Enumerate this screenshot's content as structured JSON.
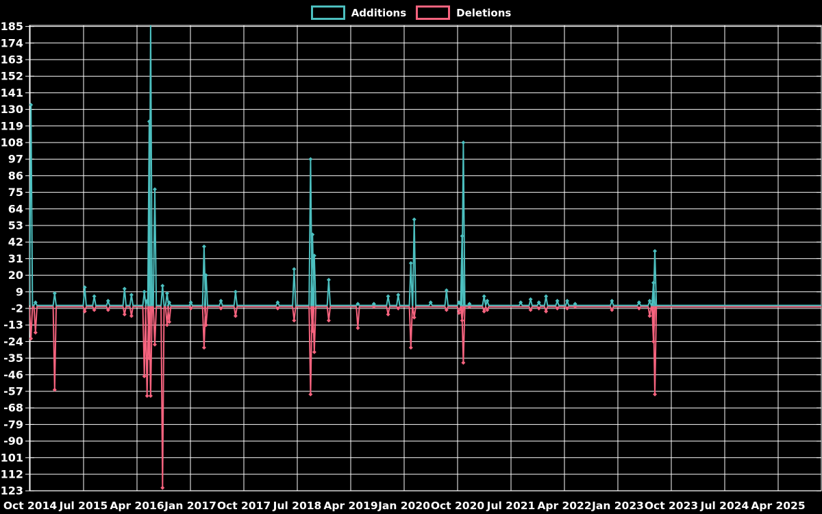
{
  "chart_data": {
    "type": "line",
    "title": "",
    "background_color": "#000000",
    "grid_color": "#ffffff",
    "text_color": "#ffffff",
    "legend_position": "top-center",
    "legend": [
      {
        "name": "Additions",
        "color": "#4CBFBF"
      },
      {
        "name": "Deletions",
        "color": "#F5637E"
      }
    ],
    "x_axis": {
      "type": "time",
      "start": "2014-10-01",
      "end": "2025-11-01",
      "tick_labels": [
        "Oct 2014",
        "Jul 2015",
        "Apr 2016",
        "Jan 2017",
        "Oct 2017",
        "Jul 2018",
        "Apr 2019",
        "Jan 2020",
        "Oct 2020",
        "Jul 2021",
        "Apr 2022",
        "Jan 2023",
        "Oct 2023",
        "Jul 2024",
        "Apr 2025"
      ],
      "tick_interval_months": 9
    },
    "y_axis": {
      "min": -123,
      "max": 185,
      "tick_step": 11,
      "ticks": [
        185,
        174,
        163,
        152,
        141,
        130,
        119,
        108,
        97,
        86,
        75,
        64,
        53,
        42,
        31,
        20,
        9,
        -2,
        -13,
        -24,
        -35,
        -46,
        -57,
        -68,
        -79,
        -90,
        -101,
        -112,
        -123
      ]
    },
    "grid": true,
    "events": [
      {
        "date": "2014-10-05",
        "additions": 133,
        "deletions": -22
      },
      {
        "date": "2014-10-28",
        "additions": 2,
        "deletions": -18
      },
      {
        "date": "2015-02-05",
        "additions": 8,
        "deletions": -56
      },
      {
        "date": "2015-07-07",
        "additions": 12,
        "deletions": -4
      },
      {
        "date": "2015-08-25",
        "additions": 6,
        "deletions": -3
      },
      {
        "date": "2015-11-05",
        "additions": 3,
        "deletions": -3
      },
      {
        "date": "2016-01-28",
        "additions": 11,
        "deletions": -6
      },
      {
        "date": "2016-03-03",
        "additions": 7,
        "deletions": -7
      },
      {
        "date": "2016-05-08",
        "additions": 9,
        "deletions": -47
      },
      {
        "date": "2016-05-22",
        "additions": 3,
        "deletions": -60
      },
      {
        "date": "2016-06-03",
        "additions": 122,
        "deletions": -35
      },
      {
        "date": "2016-06-10",
        "additions": 188,
        "deletions": -60
      },
      {
        "date": "2016-07-01",
        "additions": 77,
        "deletions": -26
      },
      {
        "date": "2016-08-10",
        "additions": 13,
        "deletions": -121
      },
      {
        "date": "2016-09-03",
        "additions": 8,
        "deletions": -13
      },
      {
        "date": "2016-09-14",
        "additions": 2,
        "deletions": -11
      },
      {
        "date": "2017-01-03",
        "additions": 2,
        "deletions": -2
      },
      {
        "date": "2017-03-10",
        "additions": 39,
        "deletions": -28
      },
      {
        "date": "2017-03-20",
        "additions": 20,
        "deletions": -13
      },
      {
        "date": "2017-06-05",
        "additions": 3,
        "deletions": -2
      },
      {
        "date": "2017-08-19",
        "additions": 9,
        "deletions": -7
      },
      {
        "date": "2018-03-22",
        "additions": 2,
        "deletions": -2
      },
      {
        "date": "2018-06-15",
        "additions": 24,
        "deletions": -10
      },
      {
        "date": "2018-09-08",
        "additions": 97,
        "deletions": -59
      },
      {
        "date": "2018-09-18",
        "additions": 47,
        "deletions": -17
      },
      {
        "date": "2018-09-27",
        "additions": 33,
        "deletions": -31
      },
      {
        "date": "2018-12-10",
        "additions": 17,
        "deletions": -10
      },
      {
        "date": "2019-05-07",
        "additions": 1,
        "deletions": -15
      },
      {
        "date": "2019-07-28",
        "additions": 1,
        "deletions": -1
      },
      {
        "date": "2019-10-10",
        "additions": 6,
        "deletions": -6
      },
      {
        "date": "2019-12-01",
        "additions": 7,
        "deletions": -2
      },
      {
        "date": "2020-02-05",
        "additions": 28,
        "deletions": -28
      },
      {
        "date": "2020-02-22",
        "additions": 57,
        "deletions": -8
      },
      {
        "date": "2020-05-15",
        "additions": 2,
        "deletions": 0
      },
      {
        "date": "2020-08-05",
        "additions": 10,
        "deletions": -3
      },
      {
        "date": "2020-10-08",
        "additions": 2,
        "deletions": -5
      },
      {
        "date": "2020-10-24",
        "additions": 46,
        "deletions": -10
      },
      {
        "date": "2020-10-30",
        "additions": 108,
        "deletions": -38
      },
      {
        "date": "2020-12-01",
        "additions": 1,
        "deletions": -1
      },
      {
        "date": "2021-02-15",
        "additions": 6,
        "deletions": -4
      },
      {
        "date": "2021-03-01",
        "additions": 3,
        "deletions": -3
      },
      {
        "date": "2021-08-20",
        "additions": 2,
        "deletions": 0
      },
      {
        "date": "2021-10-10",
        "additions": 4,
        "deletions": -3
      },
      {
        "date": "2021-11-22",
        "additions": 2,
        "deletions": -2
      },
      {
        "date": "2021-12-28",
        "additions": 6,
        "deletions": -4
      },
      {
        "date": "2022-02-25",
        "additions": 3,
        "deletions": -2
      },
      {
        "date": "2022-04-15",
        "additions": 3,
        "deletions": -2
      },
      {
        "date": "2022-05-25",
        "additions": 1,
        "deletions": -1
      },
      {
        "date": "2022-12-01",
        "additions": 3,
        "deletions": -3
      },
      {
        "date": "2023-04-18",
        "additions": 2,
        "deletions": -2
      },
      {
        "date": "2023-06-12",
        "additions": 3,
        "deletions": -7
      },
      {
        "date": "2023-07-01",
        "additions": 15,
        "deletions": -24
      },
      {
        "date": "2023-07-08",
        "additions": 36,
        "deletions": -59
      }
    ]
  }
}
